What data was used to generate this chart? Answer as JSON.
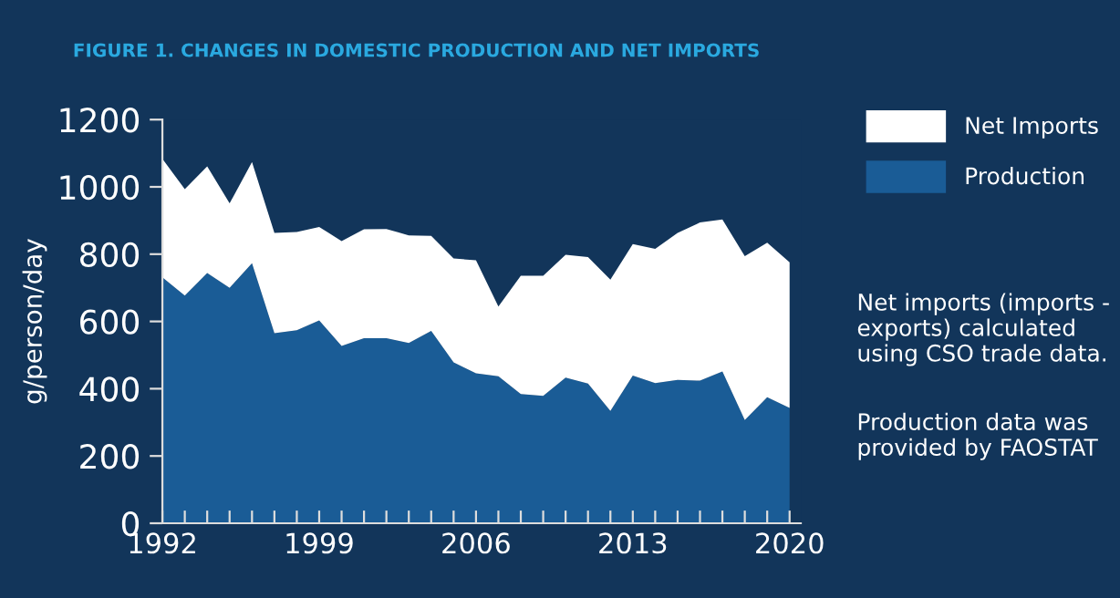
{
  "chart_data": {
    "type": "area",
    "title": "FIGURE 1. CHANGES IN DOMESTIC PRODUCTION AND NET IMPORTS",
    "ylabel": "g/person/day",
    "stacked": true,
    "x": [
      1992,
      1993,
      1994,
      1995,
      1996,
      1997,
      1998,
      1999,
      2000,
      2001,
      2002,
      2003,
      2004,
      2005,
      2006,
      2007,
      2008,
      2009,
      2010,
      2011,
      2012,
      2013,
      2014,
      2015,
      2016,
      2017,
      2018,
      2019,
      2020
    ],
    "series": [
      {
        "name": "Production",
        "color": "#1a5c96",
        "values": [
          731,
          677,
          744,
          700,
          773,
          565,
          574,
          603,
          527,
          550,
          550,
          536,
          572,
          478,
          446,
          437,
          384,
          379,
          433,
          415,
          334,
          439,
          417,
          426,
          424,
          451,
          307,
          375,
          343
        ]
      },
      {
        "name": "Net Imports",
        "color": "#ffffff",
        "values": [
          352,
          316,
          317,
          251,
          301,
          298,
          292,
          278,
          312,
          324,
          325,
          320,
          282,
          309,
          336,
          207,
          352,
          357,
          365,
          376,
          390,
          391,
          399,
          437,
          470,
          452,
          487,
          459,
          433
        ]
      }
    ],
    "xlim": [
      1992,
      2020.5
    ],
    "xticks": [
      1992,
      {
        "value": 1993,
        "label": null
      },
      {
        "value": 1994,
        "label": null
      },
      {
        "value": 1995,
        "label": null
      },
      {
        "value": 1996,
        "label": null
      },
      {
        "value": 1997,
        "label": null
      },
      {
        "value": 1998,
        "label": null
      },
      1999,
      {
        "value": 2000,
        "label": null
      },
      {
        "value": 2001,
        "label": null
      },
      {
        "value": 2002,
        "label": null
      },
      {
        "value": 2003,
        "label": null
      },
      {
        "value": 2004,
        "label": null
      },
      {
        "value": 2005,
        "label": null
      },
      2006,
      {
        "value": 2007,
        "label": null
      },
      {
        "value": 2008,
        "label": null
      },
      {
        "value": 2009,
        "label": null
      },
      {
        "value": 2010,
        "label": null
      },
      {
        "value": 2011,
        "label": null
      },
      {
        "value": 2012,
        "label": null
      },
      2013,
      {
        "value": 2014,
        "label": null
      },
      {
        "value": 2015,
        "label": null
      },
      {
        "value": 2016,
        "label": null
      },
      {
        "value": 2017,
        "label": null
      },
      {
        "value": 2018,
        "label": null
      },
      {
        "value": 2019,
        "label": null
      },
      2020
    ],
    "ylim": [
      0,
      1200
    ],
    "yticks": [
      0,
      200,
      400,
      600,
      800,
      1000,
      1200
    ],
    "legend": "top right",
    "annotations": [
      "Net imports (imports - exports) calculated using CSO trade data.",
      "Production data was provided by FAOSTAT"
    ]
  }
}
